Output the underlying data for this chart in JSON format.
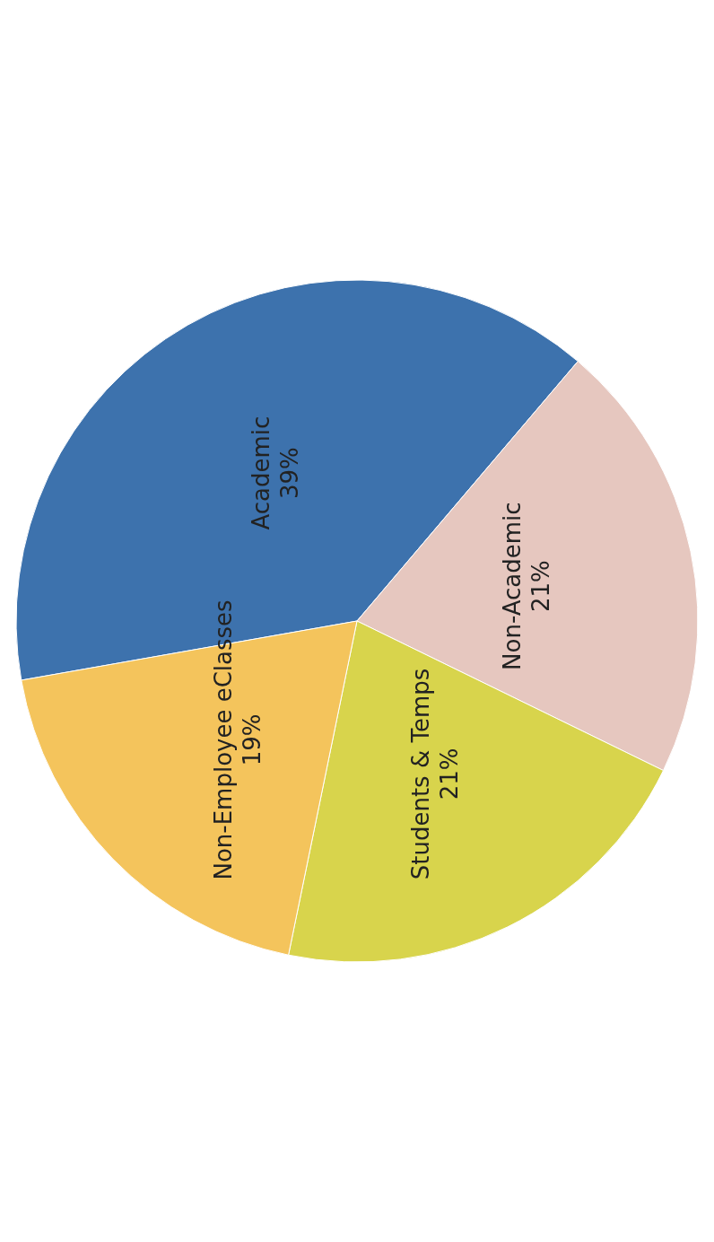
{
  "chart_data": {
    "type": "pie",
    "categories": [
      "Academic",
      "Non-Academic",
      "Students & Temps",
      "Non-Employee eClasses"
    ],
    "values": [
      39,
      21,
      21,
      19
    ],
    "value_labels": [
      "39%",
      "21%",
      "21%",
      "19%"
    ],
    "colors": [
      "#3d72ad",
      "#e6c7bf",
      "#d8d44c",
      "#f4c45c"
    ]
  }
}
